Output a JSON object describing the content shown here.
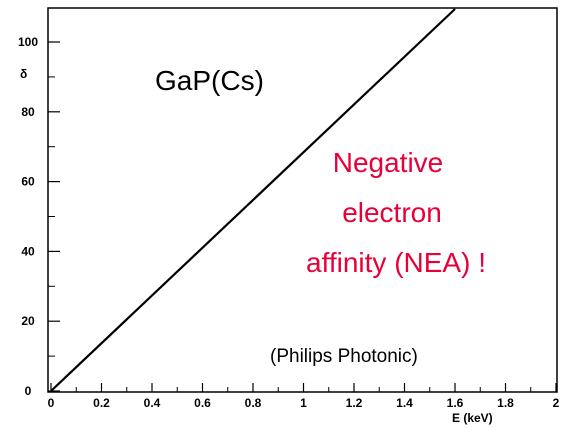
{
  "chart_data": {
    "type": "line",
    "title": "GaP(Cs)",
    "xlabel": "E  (keV)",
    "ylabel": "δ",
    "xlim": [
      0,
      2
    ],
    "ylim": [
      0,
      110
    ],
    "x_ticks": [
      "0",
      "0.2",
      "0.4",
      "0.6",
      "0.8",
      "1",
      "1.2",
      "1.4",
      "1.6",
      "1.8",
      "2"
    ],
    "y_ticks": [
      "0",
      "20",
      "40",
      "60",
      "80",
      "100"
    ],
    "series": [
      {
        "x": [
          0,
          1.6
        ],
        "y": [
          0,
          110
        ]
      }
    ],
    "annotations": {
      "nea": [
        "Negative",
        "electron",
        "affinity (NEA) !"
      ],
      "source": "(Philips Photonic)"
    },
    "colors": {
      "line": "#000000",
      "annotation": "#e8003a"
    }
  }
}
